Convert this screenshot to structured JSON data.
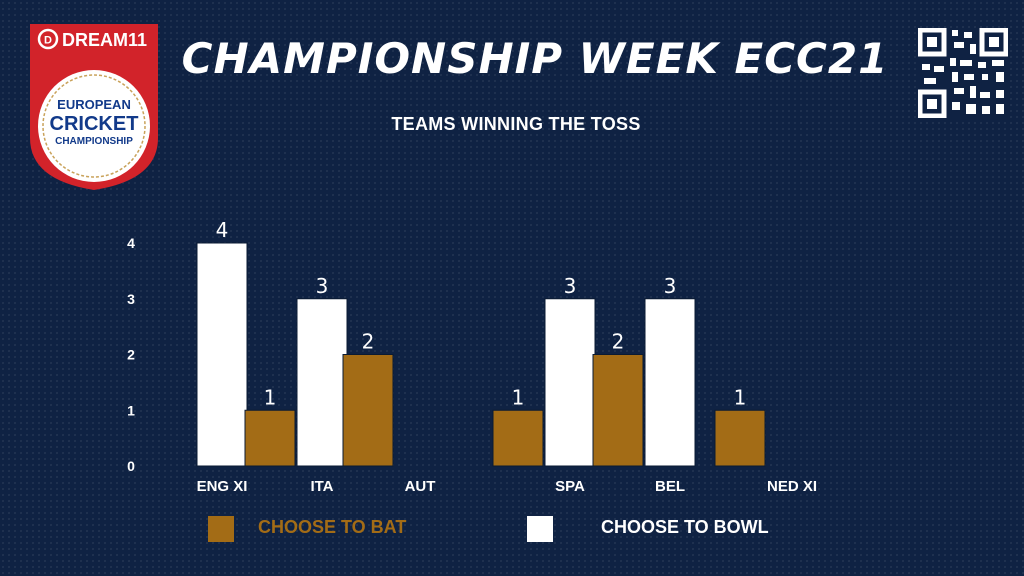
{
  "header": {
    "title": "CHAMPIONSHIP WEEK ECC21",
    "logo_brand": "DREAM11",
    "logo_line1": "EUROPEAN",
    "logo_line2": "CRICKET",
    "logo_line3": "CHAMPIONSHIP"
  },
  "colors": {
    "background": "#0f2243",
    "bat": "#a36c16",
    "bowl": "#ffffff",
    "logo_red": "#d2232a"
  },
  "chart_data": {
    "type": "bar",
    "title": "TEAMS WINNING THE TOSS",
    "categories": [
      "ENG XI",
      "ITA",
      "AUT",
      "SPA",
      "BEL",
      "NED XI"
    ],
    "series": [
      {
        "name": "CHOOSE TO BAT",
        "values": [
          0,
          1,
          2,
          1,
          2,
          1
        ]
      },
      {
        "name": "CHOOSE TO BOWL",
        "values": [
          4,
          3,
          0,
          3,
          3,
          0
        ]
      }
    ],
    "ylim": [
      0,
      4
    ],
    "yticks": [
      0,
      1,
      2,
      3,
      4
    ],
    "grid": false,
    "legend_position": "bottom"
  }
}
